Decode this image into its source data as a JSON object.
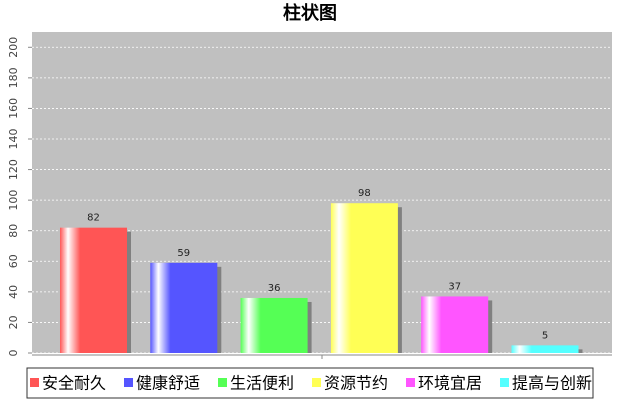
{
  "chart_data": {
    "type": "bar",
    "title": "柱状图",
    "categories": [
      null
    ],
    "series": [
      {
        "name": "安全耐久",
        "color": "#ff5555",
        "values": [
          82
        ]
      },
      {
        "name": "健康舒适",
        "color": "#5555ff",
        "values": [
          59
        ]
      },
      {
        "name": "生活便利",
        "color": "#55ff55",
        "values": [
          36
        ]
      },
      {
        "name": "资源节约",
        "color": "#ffff55",
        "values": [
          98
        ]
      },
      {
        "name": "环境宜居",
        "color": "#ff55ff",
        "values": [
          37
        ]
      },
      {
        "name": "提高与创新",
        "color": "#55ffff",
        "values": [
          5
        ]
      }
    ],
    "ylim": [
      0,
      210
    ],
    "yticks": [
      0,
      20,
      40,
      60,
      80,
      100,
      120,
      140,
      160,
      180,
      200
    ],
    "grid": true
  }
}
